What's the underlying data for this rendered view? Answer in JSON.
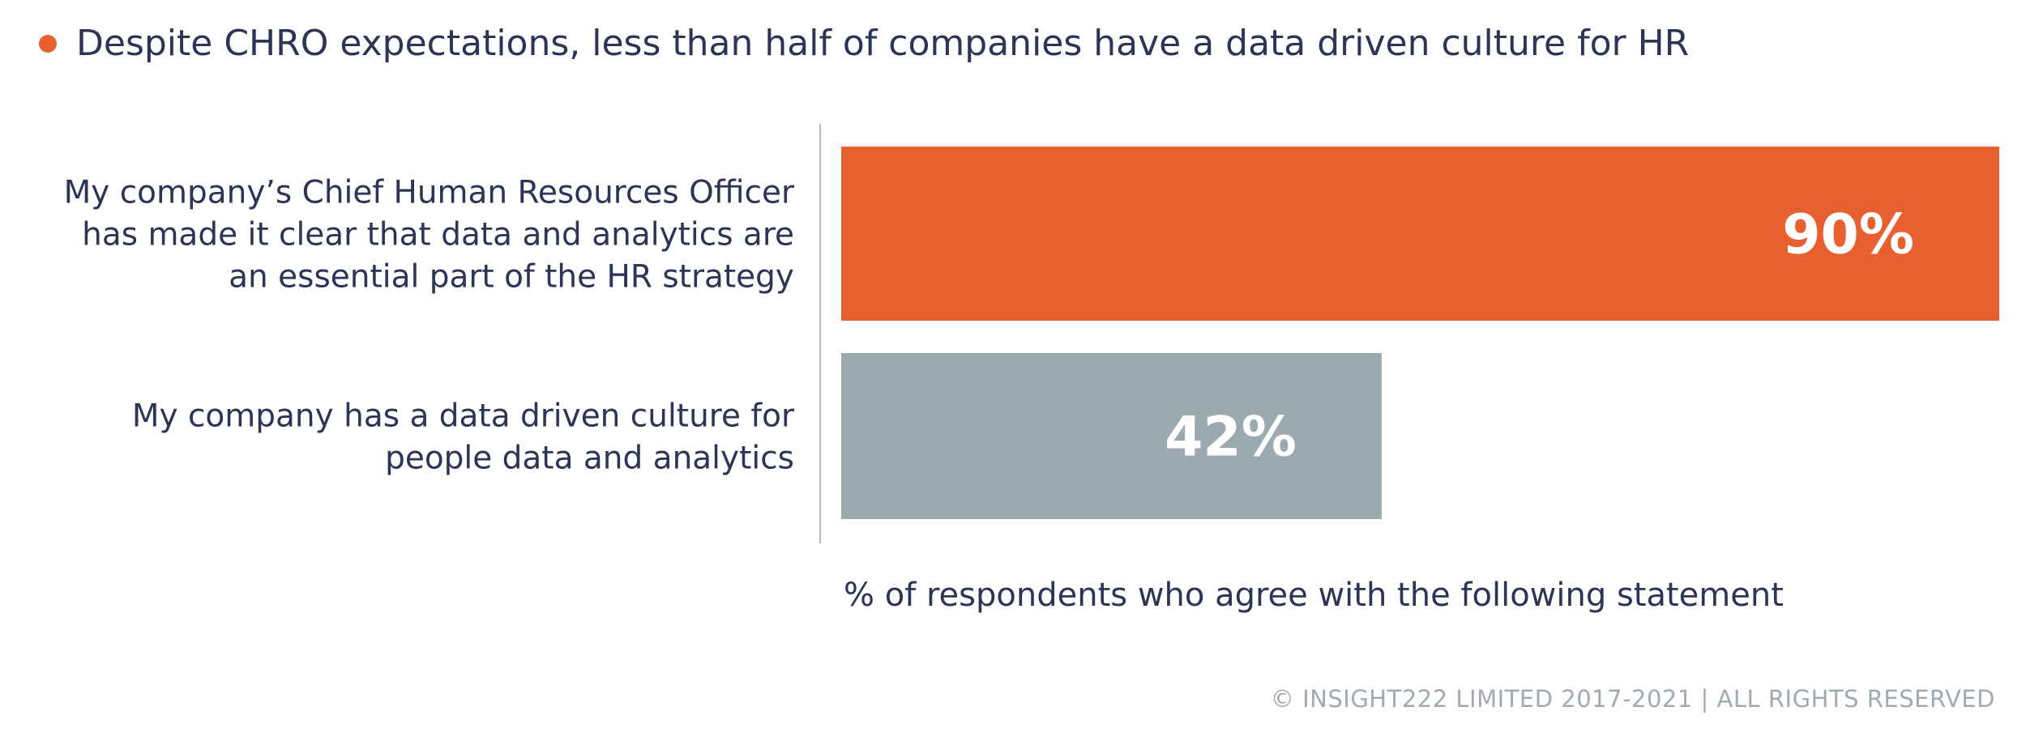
{
  "headline": {
    "text": "Despite CHRO expectations, less than half of companies have a data driven culture for HR"
  },
  "colors": {
    "accent": "#e85f30",
    "secondary": "#9aaab0",
    "text": "#2e3456",
    "footer": "#a0aab3",
    "axis": "#b4b8be"
  },
  "chart_data": {
    "type": "bar",
    "orientation": "horizontal",
    "xlim": [
      0,
      100
    ],
    "xlabel": "% of respondents who agree with the following statement",
    "categories": [
      {
        "lines": [
          "My company’s Chief Human Resources Officer",
          "has made it clear that data and analytics are",
          "an essential part of the HR strategy"
        ]
      },
      {
        "lines": [
          "My company has a data driven culture for",
          "people data and analytics"
        ]
      }
    ],
    "values": [
      90,
      42
    ],
    "data_labels": [
      "90%",
      "42%"
    ],
    "bar_colors": [
      "#e85f30",
      "#9aaab0"
    ],
    "grid": false,
    "legend": "none"
  },
  "footer": {
    "text": "© INSIGHT222 LIMITED 2017-2021 | ALL RIGHTS RESERVED"
  }
}
